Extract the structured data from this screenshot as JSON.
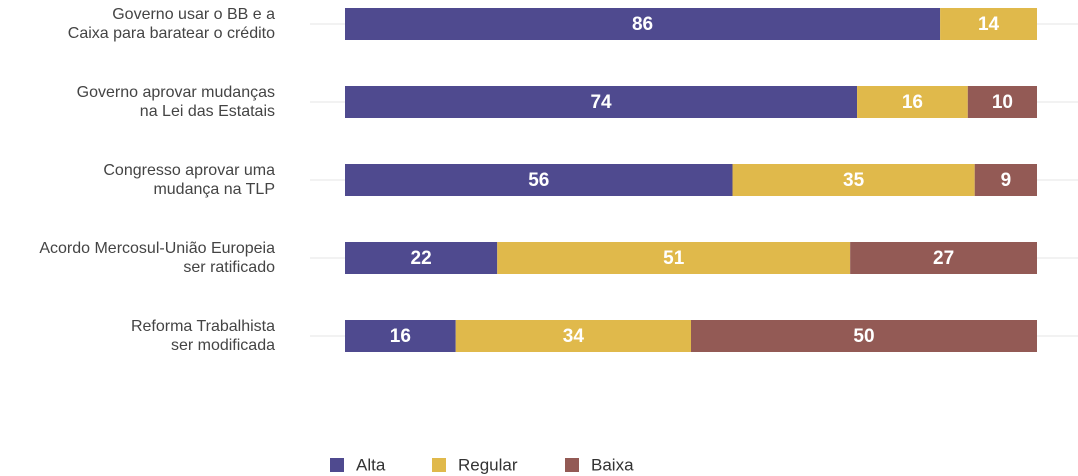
{
  "chart_data": {
    "type": "stacked-bar-horizontal",
    "categories": [
      [
        "Governo usar o BB e a",
        "Caixa para baratear o crédito"
      ],
      [
        "Governo aprovar mudanças",
        "na Lei das Estatais"
      ],
      [
        "Congresso aprovar uma",
        "mudança na TLP"
      ],
      [
        "Acordo Mercosul-União Europeia",
        "ser ratificado"
      ],
      [
        "Reforma Trabalhista",
        "ser modificada"
      ]
    ],
    "series": [
      {
        "name": "Alta",
        "color": "#4f4a8f",
        "values": [
          86,
          74,
          56,
          22,
          16
        ]
      },
      {
        "name": "Regular",
        "color": "#e0b94b",
        "values": [
          14,
          16,
          35,
          51,
          34
        ]
      },
      {
        "name": "Baixa",
        "color": "#935a55",
        "values": [
          0,
          10,
          9,
          27,
          50
        ]
      }
    ],
    "xlim": [
      0,
      100
    ]
  }
}
